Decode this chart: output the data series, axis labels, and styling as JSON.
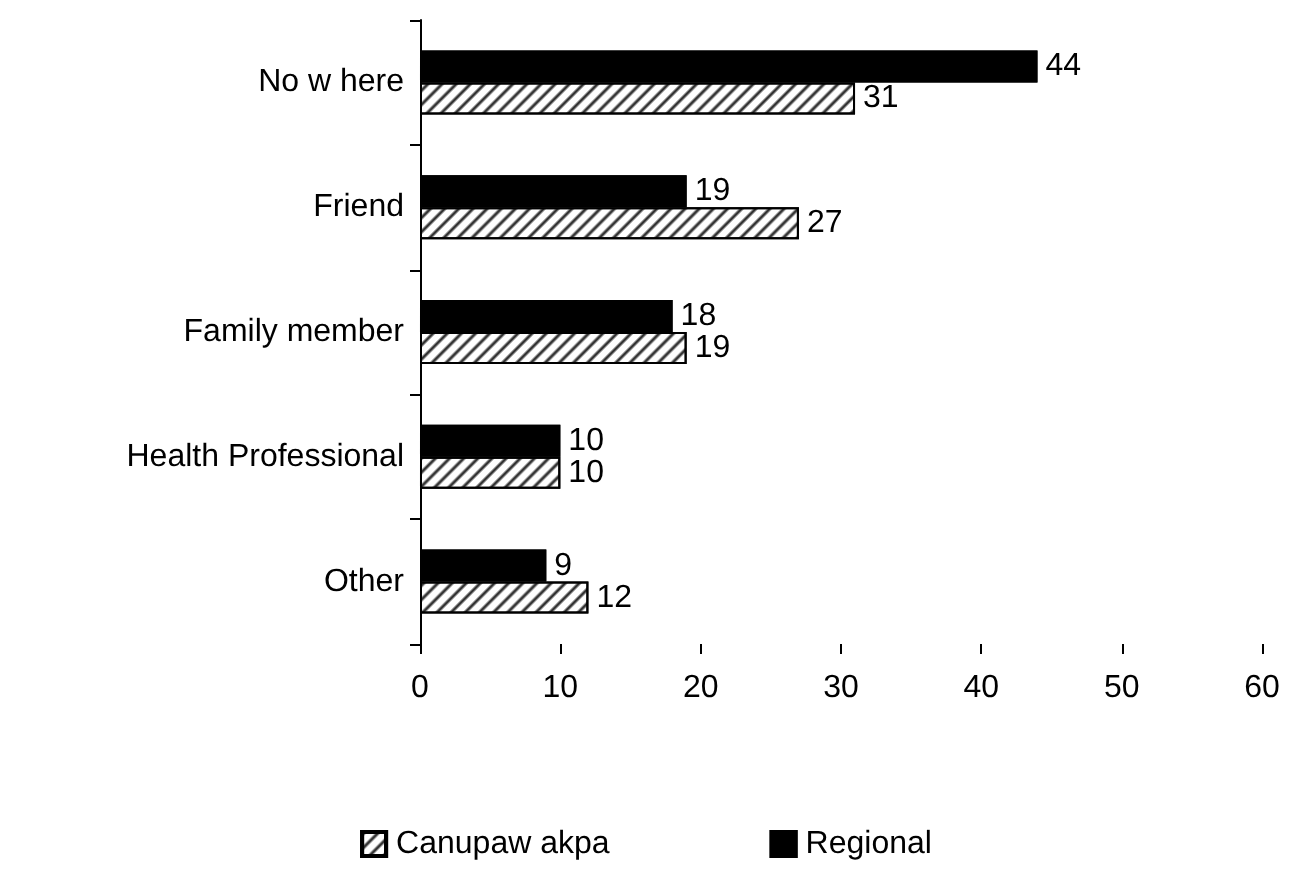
{
  "chart_data": {
    "type": "bar",
    "orientation": "horizontal",
    "categories": [
      "No w here",
      "Friend",
      "Family member",
      "Health Professional",
      "Other"
    ],
    "series": [
      {
        "name": "Canupaw akpa",
        "color": "#ffffff",
        "values": [
          31,
          27,
          19,
          10,
          12
        ]
      },
      {
        "name": "Regional",
        "color": "#000000",
        "values": [
          44,
          19,
          18,
          10,
          9
        ]
      }
    ],
    "xlim": [
      0,
      60
    ],
    "xticks": [
      0,
      10,
      20,
      30,
      40,
      50,
      60
    ],
    "grid": false,
    "legend": "bottom",
    "data_labels": true
  }
}
